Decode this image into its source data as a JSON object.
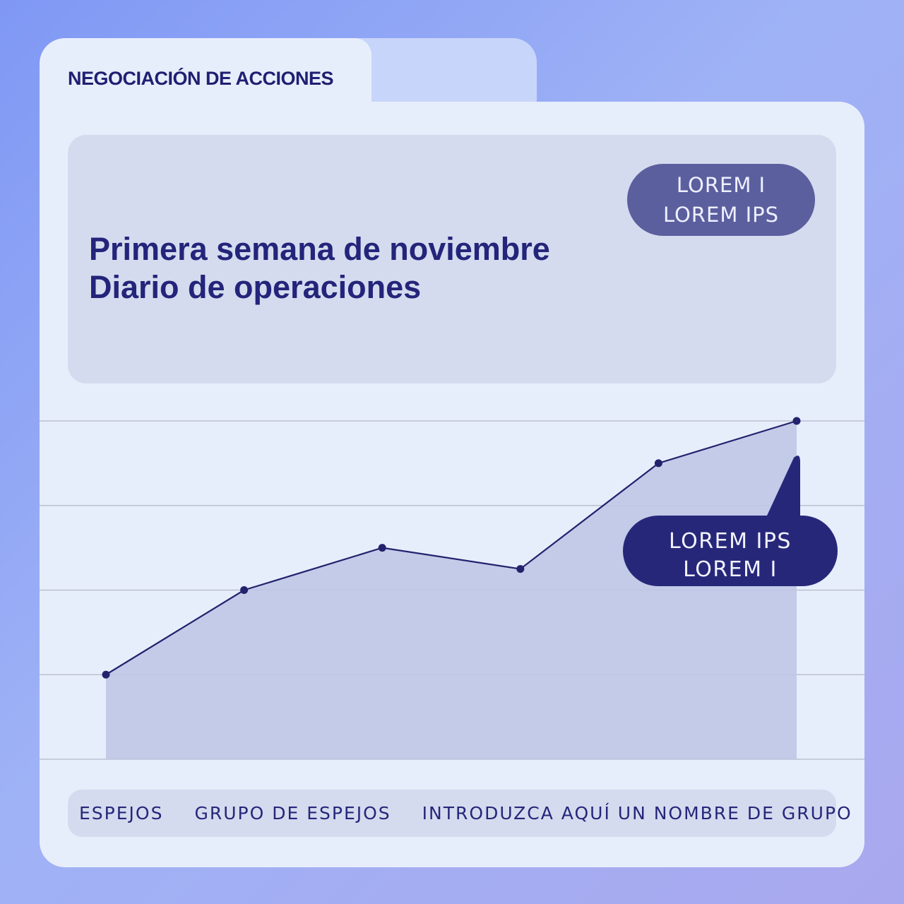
{
  "tab_title": "NEGOCIACIÓN DE ACCIONES",
  "header": {
    "title_line1": "Primera semana de noviembre",
    "title_line2": "Diario de operaciones",
    "pill_line1": "LOREM I",
    "pill_line2": "LOREM IPS"
  },
  "callout": {
    "line1": "LOREM IPS",
    "line2": "LOREM I"
  },
  "footer": {
    "item1": "ESPEJOS",
    "item2": "GRUPO DE ESPEJOS",
    "item3": "INTRODUZCA AQUÍ UN NOMBRE DE GRUPO"
  },
  "colors": {
    "line": "#22226e",
    "area": "#bfc7e5",
    "grid": "#b3b7c8",
    "callout": "#27277a"
  },
  "chart_data": {
    "type": "area",
    "title": "",
    "xlabel": "",
    "ylabel": "",
    "ylim": [
      0,
      4
    ],
    "grid": true,
    "legend": "none",
    "series": [
      {
        "values": [
          1,
          2,
          2.5,
          2.25,
          3.5,
          4
        ]
      }
    ]
  }
}
